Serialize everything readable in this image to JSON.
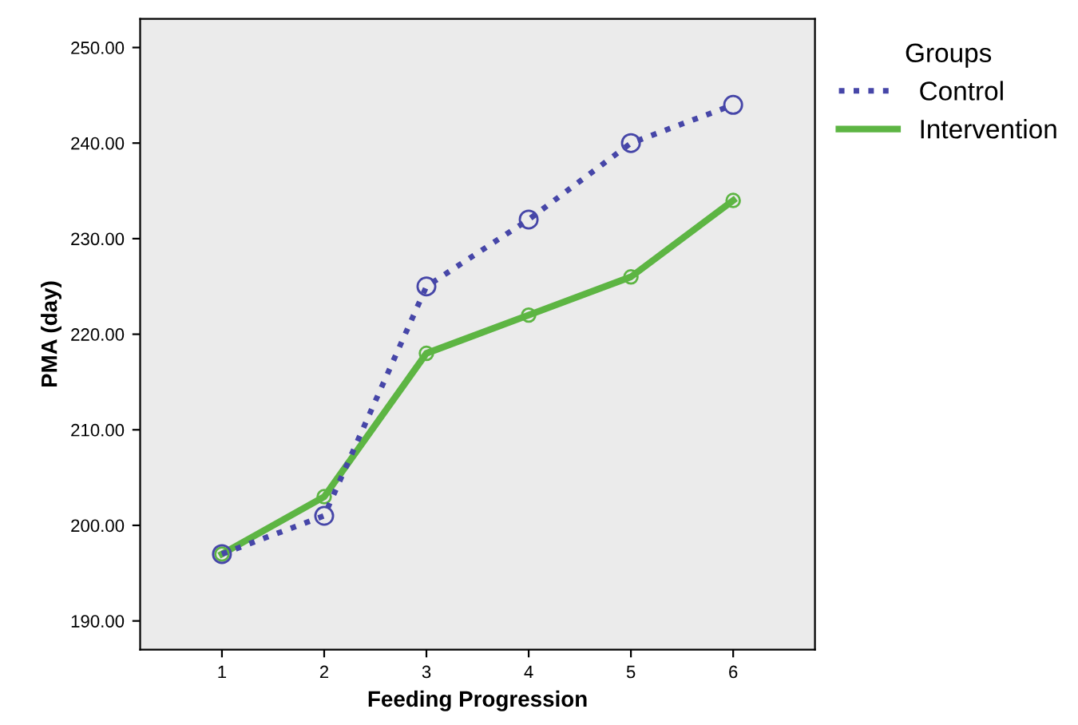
{
  "chart_data": {
    "type": "line",
    "xlabel": "Feeding Progression",
    "ylabel": "PMA (day)",
    "legend_title": "Groups",
    "legend": "top right",
    "x": [
      1,
      2,
      3,
      4,
      5,
      6
    ],
    "series": [
      {
        "name": "Control",
        "color": "#4646a8",
        "values": [
          197,
          201,
          225,
          232,
          240,
          244
        ],
        "line_style": "dotted"
      },
      {
        "name": "Intervention",
        "color": "#5db543",
        "values": [
          197,
          203,
          218,
          222,
          226,
          234
        ],
        "line_style": "solid"
      }
    ],
    "marker": "circle",
    "grid": false,
    "xlim": [
      0.2,
      6.8
    ],
    "xticks": [
      1,
      2,
      3,
      4,
      5,
      6
    ],
    "ylim": [
      187,
      253
    ],
    "yticks": [
      {
        "value": 190,
        "label": "190.00"
      },
      {
        "value": 200,
        "label": "200.00"
      },
      {
        "value": 210,
        "label": "210.00"
      },
      {
        "value": 220,
        "label": "220.00"
      },
      {
        "value": 230,
        "label": "230.00"
      },
      {
        "value": 240,
        "label": "240.00"
      },
      {
        "value": 250,
        "label": "250.00"
      }
    ]
  }
}
